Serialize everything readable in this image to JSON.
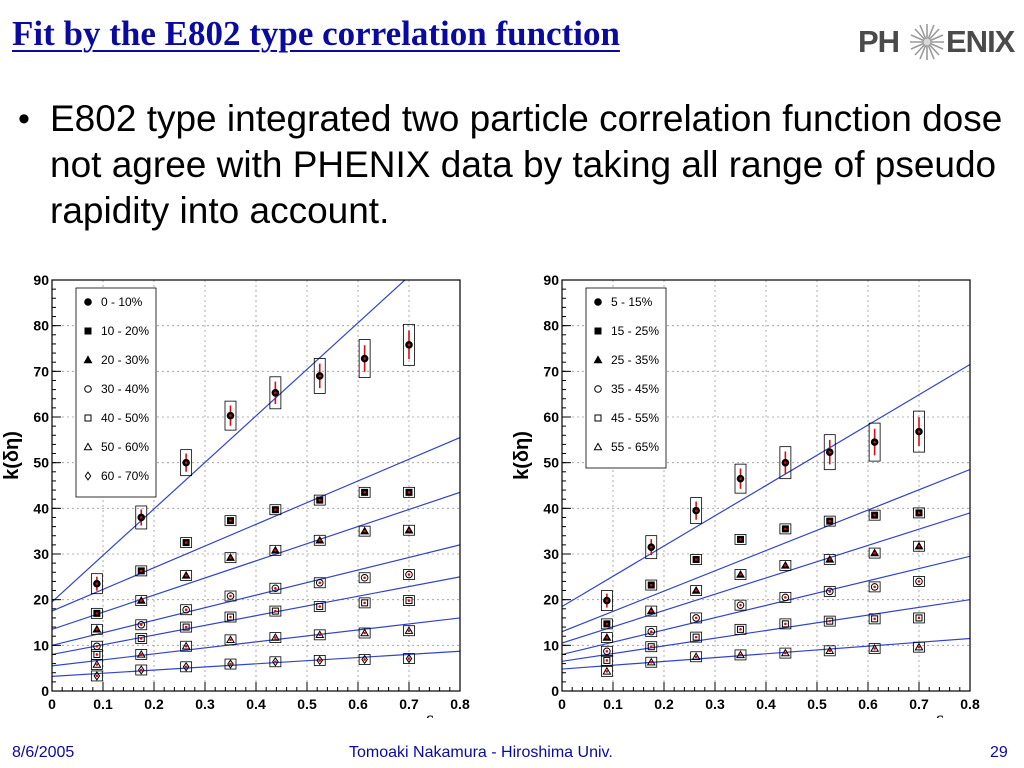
{
  "slide": {
    "title": "Fit by the E802 type correlation function",
    "bullet": "E802 type integrated two particle correlation function dose not agree with PHENIX data by taking all range of pseudo rapidity into account.",
    "logo_text_left": "PH",
    "logo_text_right": "ENIX",
    "footer": {
      "date": "8/6/2005",
      "author": "Tomoaki Nakamura - Hiroshima Univ.",
      "page": "29"
    }
  },
  "chart_data": [
    {
      "type": "scatter",
      "xlabel": "δη",
      "ylabel": "k(δη)",
      "xlim": [
        0,
        0.8
      ],
      "ylim": [
        0,
        90
      ],
      "xticks": [
        "0",
        "0.1",
        "0.2",
        "0.3",
        "0.4",
        "0.5",
        "0.6",
        "0.7",
        "0.8"
      ],
      "yticks": [
        "0",
        "10",
        "20",
        "30",
        "40",
        "50",
        "60",
        "70",
        "80",
        "90"
      ],
      "grid": true,
      "legend_position": "top-left",
      "x": [
        0.088,
        0.175,
        0.263,
        0.35,
        0.438,
        0.525,
        0.613,
        0.7
      ],
      "series": [
        {
          "name": "0 - 10%",
          "marker": "filled-circle",
          "values": [
            23.5,
            38,
            50,
            60.3,
            65.3,
            69,
            72.8,
            75.8
          ]
        },
        {
          "name": "10 - 20%",
          "marker": "filled-square",
          "values": [
            17,
            26.3,
            32.5,
            37.3,
            39.7,
            41.8,
            43.5,
            43.5
          ]
        },
        {
          "name": "20 - 30%",
          "marker": "filled-triangle",
          "values": [
            13.5,
            19.8,
            25.3,
            29.2,
            30.8,
            33,
            35,
            35.2
          ]
        },
        {
          "name": "30 - 40%",
          "marker": "open-circle",
          "values": [
            9.8,
            14.5,
            17.8,
            20.8,
            22.5,
            23.7,
            24.8,
            25.5
          ]
        },
        {
          "name": "40 - 50%",
          "marker": "open-square",
          "values": [
            8,
            11.5,
            14,
            16.2,
            17.5,
            18.5,
            19.3,
            19.8
          ]
        },
        {
          "name": "50 - 60%",
          "marker": "open-triangle",
          "values": [
            5.8,
            8,
            9.8,
            11.2,
            11.7,
            12.3,
            12.7,
            13.2
          ]
        },
        {
          "name": "60 - 70%",
          "marker": "open-diamond",
          "values": [
            3.3,
            4.6,
            5.3,
            5.9,
            6.4,
            6.7,
            6.9,
            7.1
          ]
        }
      ],
      "fit_lines": [
        {
          "y0": 19.5,
          "y1": 101
        },
        {
          "y0": 17.5,
          "y1": 55.5
        },
        {
          "y0": 13.5,
          "y1": 43.5
        },
        {
          "y0": 10,
          "y1": 32
        },
        {
          "y0": 8,
          "y1": 25
        },
        {
          "y0": 5.5,
          "y1": 16
        },
        {
          "y0": 3.2,
          "y1": 8.7
        }
      ]
    },
    {
      "type": "scatter",
      "xlabel": "δη",
      "ylabel": "k(δη)",
      "xlim": [
        0,
        0.8
      ],
      "ylim": [
        0,
        90
      ],
      "xticks": [
        "0",
        "0.1",
        "0.2",
        "0.3",
        "0.4",
        "0.5",
        "0.6",
        "0.7",
        "0.8"
      ],
      "yticks": [
        "0",
        "10",
        "20",
        "30",
        "40",
        "50",
        "60",
        "70",
        "80",
        "90"
      ],
      "grid": true,
      "legend_position": "top-left",
      "x": [
        0.088,
        0.175,
        0.263,
        0.35,
        0.438,
        0.525,
        0.613,
        0.7
      ],
      "series": [
        {
          "name": "5 - 15%",
          "marker": "filled-circle",
          "values": [
            19.8,
            31.5,
            39.5,
            46.5,
            50,
            52.3,
            54.5,
            56.8
          ]
        },
        {
          "name": "15 - 25%",
          "marker": "filled-square",
          "values": [
            14.7,
            23.2,
            28.8,
            33.2,
            35.5,
            37.2,
            38.5,
            39
          ]
        },
        {
          "name": "25 - 35%",
          "marker": "filled-triangle",
          "values": [
            11.7,
            17.5,
            22,
            25.5,
            27.5,
            28.8,
            30.2,
            31.7
          ]
        },
        {
          "name": "35 - 45%",
          "marker": "open-circle",
          "values": [
            8.7,
            13,
            16,
            18.8,
            20.5,
            21.8,
            22.8,
            24
          ]
        },
        {
          "name": "45 - 55%",
          "marker": "open-square",
          "values": [
            6.7,
            9.7,
            11.8,
            13.5,
            14.7,
            15.3,
            15.8,
            16
          ]
        },
        {
          "name": "55 - 65%",
          "marker": "open-triangle",
          "values": [
            4.3,
            6.3,
            7.5,
            7.9,
            8.3,
            8.8,
            9.3,
            9.6
          ]
        }
      ],
      "fit_lines": [
        {
          "y0": 18.5,
          "y1": 71.5
        },
        {
          "y0": 13,
          "y1": 48.5
        },
        {
          "y0": 10.5,
          "y1": 39
        },
        {
          "y0": 8,
          "y1": 29.5
        },
        {
          "y0": 6.5,
          "y1": 20
        },
        {
          "y0": 4.8,
          "y1": 11.5
        }
      ]
    }
  ]
}
